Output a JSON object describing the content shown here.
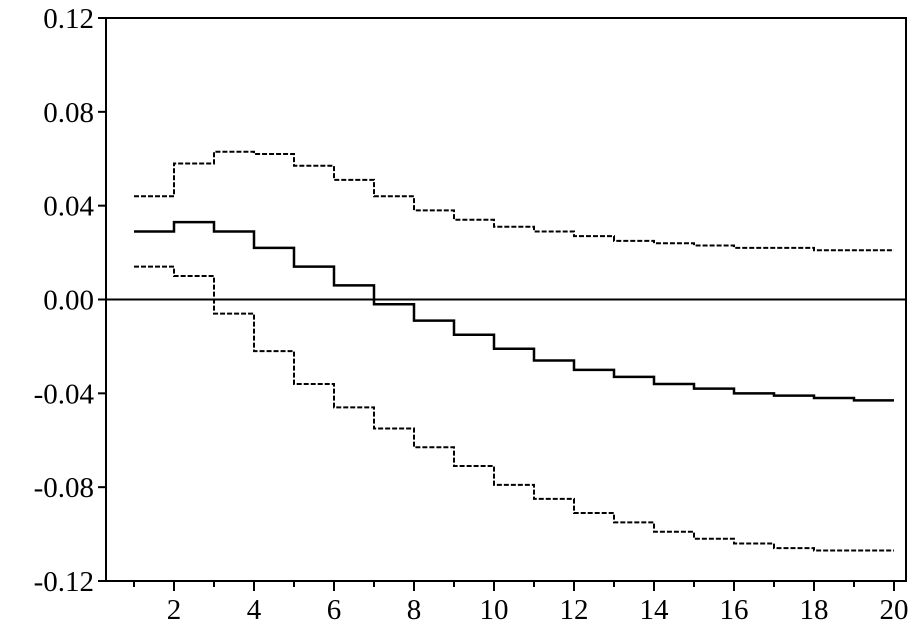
{
  "chart_data": {
    "type": "line",
    "title": "",
    "xlabel": "",
    "ylabel": "",
    "x": [
      1,
      2,
      3,
      4,
      5,
      6,
      7,
      8,
      9,
      10,
      11,
      12,
      13,
      14,
      15,
      16,
      17,
      18,
      19,
      20
    ],
    "xlim": [
      0.3,
      20.3
    ],
    "ylim": [
      -0.12,
      0.12
    ],
    "x_ticks": [
      2,
      4,
      6,
      8,
      10,
      12,
      14,
      16,
      18,
      20
    ],
    "x_tick_labels": [
      "2",
      "4",
      "6",
      "8",
      "10",
      "12",
      "14",
      "16",
      "18",
      "20"
    ],
    "y_ticks": [
      0.12,
      0.08,
      0.04,
      0.0,
      -0.04,
      -0.08,
      -0.12
    ],
    "y_tick_labels": [
      "0.12",
      "0.08",
      "0.04",
      "0.00",
      "-0.04",
      "-0.08",
      "-0.12"
    ],
    "zero_line": true,
    "grid": false,
    "series": [
      {
        "style": "solid",
        "values": [
          0.029,
          0.033,
          0.029,
          0.022,
          0.014,
          0.006,
          -0.002,
          -0.009,
          -0.015,
          -0.021,
          -0.026,
          -0.03,
          -0.033,
          -0.036,
          -0.038,
          -0.04,
          -0.041,
          -0.042,
          -0.043,
          -0.043
        ]
      },
      {
        "style": "dashed",
        "values": [
          0.044,
          0.058,
          0.063,
          0.062,
          0.057,
          0.051,
          0.044,
          0.038,
          0.034,
          0.031,
          0.029,
          0.027,
          0.025,
          0.024,
          0.023,
          0.022,
          0.022,
          0.021,
          0.021,
          0.021
        ]
      },
      {
        "style": "dashed",
        "values": [
          0.014,
          0.01,
          -0.006,
          -0.022,
          -0.036,
          -0.046,
          -0.055,
          -0.063,
          -0.071,
          -0.079,
          -0.085,
          -0.091,
          -0.095,
          -0.099,
          -0.102,
          -0.104,
          -0.106,
          -0.107,
          -0.107,
          -0.107
        ]
      }
    ]
  }
}
